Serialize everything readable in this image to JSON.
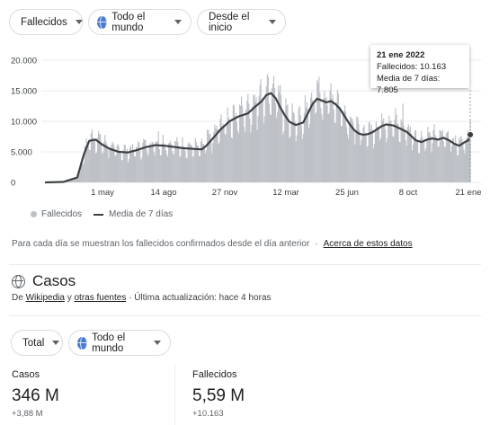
{
  "filters": {
    "metric": "Fallecidos",
    "region": "Todo el mundo",
    "period": "Desde el inicio"
  },
  "chart_data": {
    "type": "bar",
    "y_ticks": [
      "20.000",
      "15.000",
      "10.000",
      "5.000",
      "0"
    ],
    "y_values": [
      20000,
      15000,
      10000,
      5000,
      0
    ],
    "ylim": [
      0,
      20000
    ],
    "x_ticks": [
      "1 may",
      "14 ago",
      "27 nov",
      "12 mar",
      "25 jun",
      "8 oct",
      "21 ene"
    ],
    "series": [
      {
        "name": "Fallecidos",
        "color": "#bdc1c6"
      },
      {
        "name": "Media de 7 días",
        "color": "#3c4043"
      }
    ],
    "moving_average_keypoints": [
      [
        0,
        0
      ],
      [
        20,
        80
      ],
      [
        35,
        800
      ],
      [
        42,
        4500
      ],
      [
        48,
        6800
      ],
      [
        55,
        7000
      ],
      [
        62,
        6200
      ],
      [
        70,
        5500
      ],
      [
        80,
        5000
      ],
      [
        90,
        4900
      ],
      [
        100,
        5300
      ],
      [
        110,
        5800
      ],
      [
        120,
        6100
      ],
      [
        130,
        6000
      ],
      [
        140,
        5800
      ],
      [
        150,
        5600
      ],
      [
        160,
        5500
      ],
      [
        170,
        5400
      ],
      [
        175,
        6000
      ],
      [
        182,
        7200
      ],
      [
        190,
        8600
      ],
      [
        200,
        10000
      ],
      [
        210,
        10800
      ],
      [
        220,
        11300
      ],
      [
        228,
        12400
      ],
      [
        235,
        13300
      ],
      [
        240,
        14300
      ],
      [
        245,
        14600
      ],
      [
        250,
        13800
      ],
      [
        255,
        12300
      ],
      [
        260,
        11000
      ],
      [
        265,
        9900
      ],
      [
        272,
        9400
      ],
      [
        280,
        9800
      ],
      [
        285,
        11300
      ],
      [
        290,
        12800
      ],
      [
        295,
        13700
      ],
      [
        300,
        13400
      ],
      [
        305,
        13100
      ],
      [
        310,
        13300
      ],
      [
        315,
        12800
      ],
      [
        320,
        12000
      ],
      [
        325,
        10800
      ],
      [
        330,
        9600
      ],
      [
        335,
        8600
      ],
      [
        340,
        8000
      ],
      [
        345,
        7800
      ],
      [
        350,
        7900
      ],
      [
        355,
        8200
      ],
      [
        360,
        8700
      ],
      [
        365,
        9200
      ],
      [
        370,
        9500
      ],
      [
        378,
        9300
      ],
      [
        385,
        8800
      ],
      [
        392,
        8300
      ],
      [
        397,
        7600
      ],
      [
        402,
        6900
      ],
      [
        408,
        6600
      ],
      [
        414,
        7000
      ],
      [
        420,
        7200
      ],
      [
        426,
        7000
      ],
      [
        432,
        7300
      ],
      [
        438,
        6900
      ],
      [
        444,
        6300
      ],
      [
        449,
        6000
      ],
      [
        454,
        6500
      ],
      [
        459,
        6900
      ],
      [
        461,
        7805
      ]
    ],
    "legend_position": "bottom-left"
  },
  "tooltip": {
    "date": "21 ene 2022",
    "line1": "Fallecidos: 10.163",
    "line2": "Media de 7 días: 7.805",
    "deaths": 10163,
    "avg": 7805
  },
  "legend": {
    "deaths": "Fallecidos",
    "avg": "Media de 7 días"
  },
  "footnote": {
    "text": "Para cada día se muestran los fallecidos confirmados desde el día anterior",
    "sep": "·",
    "link": "Acerca de estos datos"
  },
  "cases": {
    "title": "Casos",
    "source_prefix": "De",
    "source_link1": "Wikipedia",
    "source_and": "y",
    "source_link2": "otras fuentes",
    "source_update": "· Última actualización: hace 4 horas"
  },
  "filters2": {
    "scope": "Total",
    "region": "Todo el mundo"
  },
  "stats": [
    {
      "label": "Casos",
      "value": "346 M",
      "delta": "+3,88 M"
    },
    {
      "label": "Fallecidos",
      "value": "5,59 M",
      "delta": "+10.163"
    }
  ]
}
